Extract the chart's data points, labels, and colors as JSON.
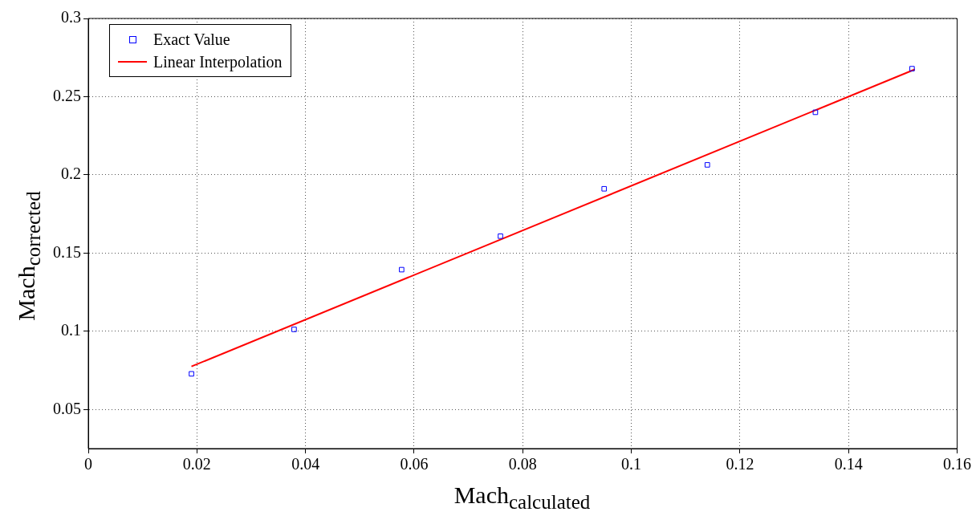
{
  "chart_data": {
    "type": "scatter",
    "xlabel": "Mach$_{calculated}$",
    "ylabel": "Mach$_{corrected}$",
    "xlim": [
      0,
      0.16
    ],
    "xticks": [
      0,
      0.02,
      0.04,
      0.06,
      0.08,
      0.1,
      0.12,
      0.14,
      0.16
    ],
    "ylim": [
      0.025,
      0.3
    ],
    "yticks": [
      0.05,
      0.1,
      0.15,
      0.2,
      0.25,
      0.3
    ],
    "grid": true,
    "legend": "top left",
    "series": [
      {
        "name": "Exact Value",
        "type": "scatter",
        "marker": "square",
        "color": "#0000ff",
        "x": [
          0.019,
          0.0379,
          0.0577,
          0.0759,
          0.095,
          0.114,
          0.1339,
          0.1517
        ],
        "values": [
          0.0728,
          0.1012,
          0.1394,
          0.1608,
          0.1911,
          0.2064,
          0.24,
          0.2679
        ]
      },
      {
        "name": "Linear Interpolation",
        "type": "line",
        "marker": "none",
        "line_style": "solid",
        "color": "#ff0000",
        "x": [
          0.019,
          0.1522
        ],
        "values": [
          0.0775,
          0.2674
        ]
      }
    ]
  }
}
